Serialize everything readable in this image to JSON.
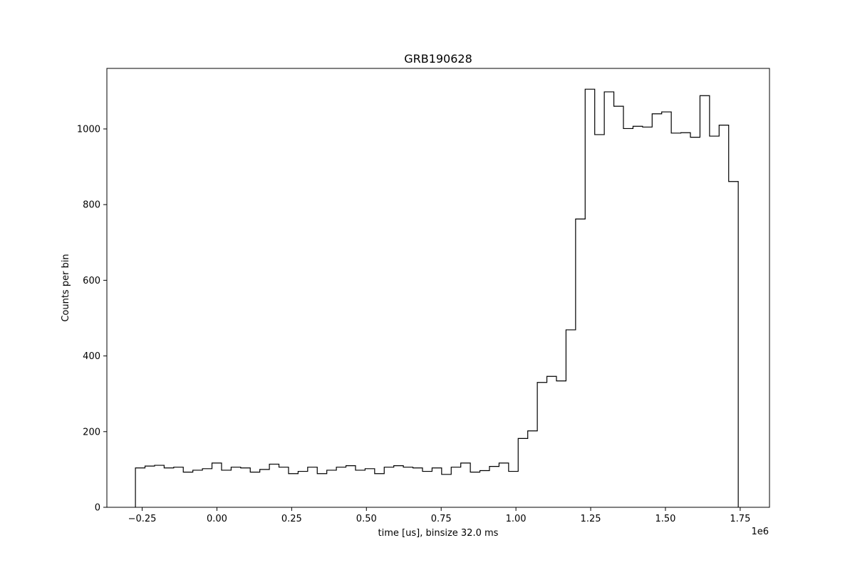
{
  "chart_data": {
    "type": "step",
    "title": "GRB190628",
    "xlabel": "time [us], binsize 32.0 ms",
    "ylabel": "Counts per bin",
    "x_offset_label": "1e6",
    "xlim": [
      -0.368,
      1.848
    ],
    "ylim": [
      0,
      1160
    ],
    "x_ticks": [
      -0.25,
      0.0,
      0.25,
      0.5,
      0.75,
      1.0,
      1.25,
      1.5,
      1.75
    ],
    "x_tick_labels": [
      "−0.25",
      "0.00",
      "0.25",
      "0.50",
      "0.75",
      "1.00",
      "1.25",
      "1.50",
      "1.75"
    ],
    "y_ticks": [
      0,
      200,
      400,
      600,
      800,
      1000
    ],
    "y_tick_labels": [
      "0",
      "200",
      "400",
      "600",
      "800",
      "1000"
    ],
    "bin_start": -0.2725,
    "bin_width": 0.032,
    "values": [
      104,
      109,
      111,
      104,
      106,
      93,
      98,
      102,
      117,
      98,
      106,
      104,
      93,
      100,
      114,
      106,
      89,
      95,
      106,
      89,
      98,
      106,
      110,
      98,
      102,
      89,
      106,
      110,
      106,
      104,
      95,
      104,
      87,
      106,
      117,
      93,
      97,
      108,
      117,
      95,
      182,
      202,
      330,
      346,
      334,
      469,
      762,
      1105,
      985,
      1098,
      1060,
      1001,
      1007,
      1005,
      1040,
      1045,
      989,
      990,
      978,
      1088,
      981,
      1010,
      861
    ],
    "line_color": "#000000",
    "grid": false,
    "legend": "none"
  }
}
